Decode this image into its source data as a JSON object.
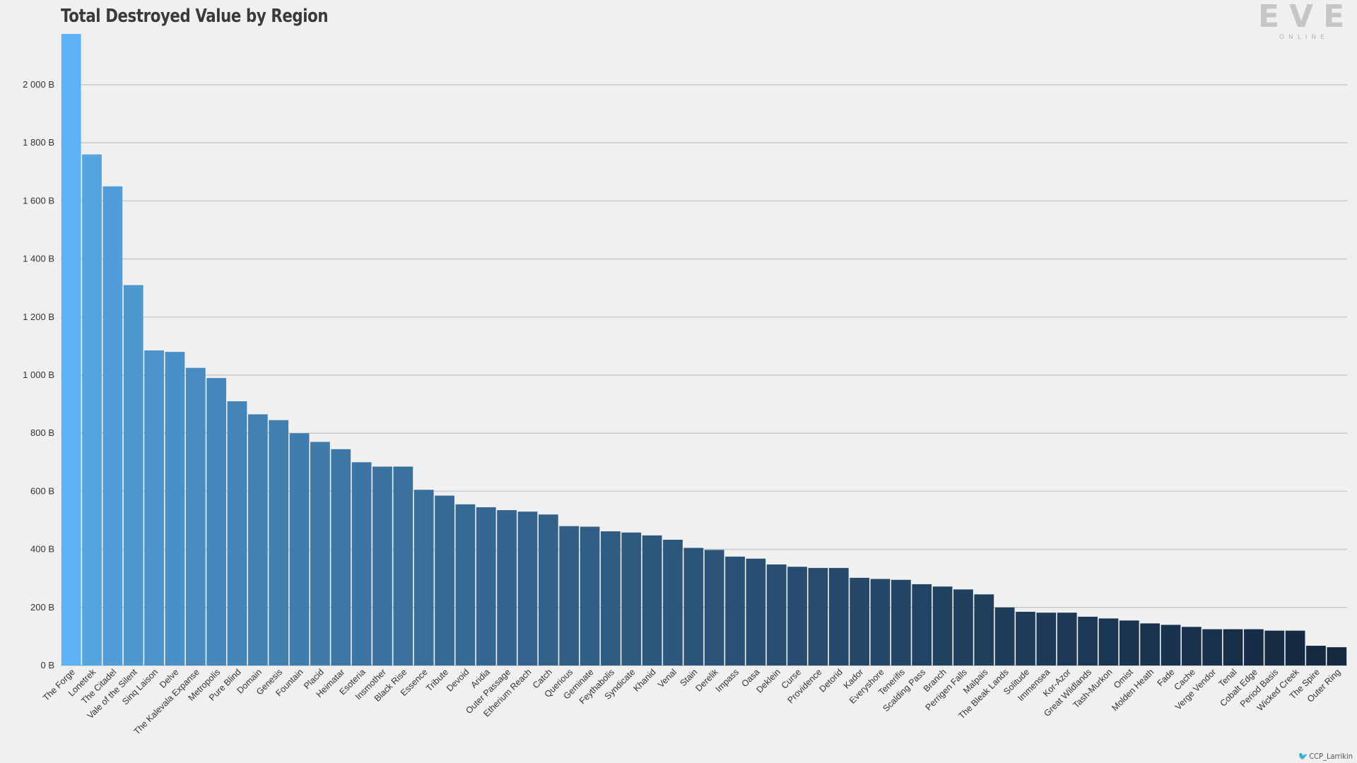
{
  "chart_data": {
    "type": "bar",
    "title": "Total Destroyed Value by Region",
    "xlabel": "",
    "ylabel": "",
    "ylim": [
      0,
      2175
    ],
    "yticks": [
      0,
      200,
      400,
      600,
      800,
      1000,
      1200,
      1400,
      1600,
      1800,
      2000
    ],
    "ytick_labels": [
      "0 B",
      "200 B",
      "400 B",
      "600 B",
      "800 B",
      "1 000 B",
      "1 200 B",
      "1 400 B",
      "1 600 B",
      "1 800 B",
      "2 000 B"
    ],
    "grid": "horizontal",
    "color_start": "#5cb2f2",
    "color_end": "#142840",
    "categories": [
      "The Forge",
      "Lonetrek",
      "The Citadel",
      "Vale of the Silent",
      "Sinq Laison",
      "Delve",
      "The Kalevala Expanse",
      "Metropolis",
      "Pure Blind",
      "Domain",
      "Genesis",
      "Fountain",
      "Placid",
      "Heimatar",
      "Esoteria",
      "Insmother",
      "Black Rise",
      "Essence",
      "Tribute",
      "Devoid",
      "Aridia",
      "Outer Passage",
      "Etherium Reach",
      "Catch",
      "Querious",
      "Geminate",
      "Feythabolis",
      "Syndicate",
      "Khanid",
      "Venal",
      "Stain",
      "Derelik",
      "Impass",
      "Oasa",
      "Deklein",
      "Curse",
      "Providence",
      "Detorid",
      "Kador",
      "Everyshore",
      "Tenerifis",
      "Scalding Pass",
      "Branch",
      "Perrigen Falls",
      "Malpais",
      "The Bleak Lands",
      "Solitude",
      "Immensea",
      "Kor-Azor",
      "Great Wildlands",
      "Tash-Murkon",
      "Omist",
      "Molden Heath",
      "Fade",
      "Cache",
      "Verge Vendor",
      "Tenal",
      "Cobalt Edge",
      "Period Basis",
      "Wicked Creek",
      "The Spire",
      "Outer Ring"
    ],
    "values": [
      2175,
      1760,
      1650,
      1310,
      1085,
      1080,
      1025,
      990,
      910,
      865,
      845,
      800,
      770,
      745,
      700,
      685,
      685,
      605,
      585,
      555,
      545,
      535,
      530,
      520,
      480,
      478,
      462,
      458,
      448,
      433,
      405,
      398,
      375,
      368,
      348,
      340,
      336,
      336,
      302,
      298,
      295,
      280,
      272,
      262,
      245,
      200,
      185,
      182,
      182,
      168,
      162,
      155,
      145,
      140,
      133,
      125,
      125,
      125,
      120,
      120,
      68,
      63
    ]
  },
  "branding": {
    "logo_letters": "EVE",
    "logo_sub": "ONLINE",
    "credit_icon": "twitter-icon",
    "credit": "CCP_Larrikin"
  }
}
